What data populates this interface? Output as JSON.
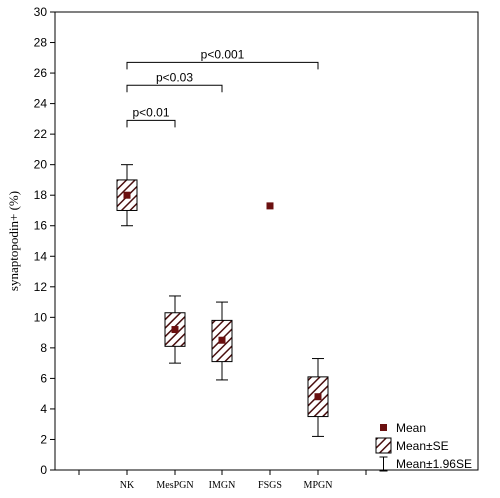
{
  "chart_data": {
    "type": "box",
    "ylabel": "synaptopodin+ (%)",
    "ylim": [
      0,
      30
    ],
    "yticks": [
      0,
      2,
      4,
      6,
      8,
      10,
      12,
      14,
      16,
      18,
      20,
      22,
      24,
      26,
      28,
      30
    ],
    "grid": false,
    "categories": [
      "NK",
      "MesPGN",
      "IMGN",
      "FSGS",
      "MPGN"
    ],
    "series": [
      {
        "category": "NK",
        "mean": 18.0,
        "se_low": 17.0,
        "se_high": 19.0,
        "ci_low": 16.0,
        "ci_high": 20.0
      },
      {
        "category": "MesPGN",
        "mean": 9.2,
        "se_low": 8.1,
        "se_high": 10.3,
        "ci_low": 7.0,
        "ci_high": 11.4
      },
      {
        "category": "IMGN",
        "mean": 8.5,
        "se_low": 7.1,
        "se_high": 9.8,
        "ci_low": 5.9,
        "ci_high": 11.0
      },
      {
        "category": "FSGS",
        "mean": 17.3
      },
      {
        "category": "MPGN",
        "mean": 4.8,
        "se_low": 3.5,
        "se_high": 6.1,
        "ci_low": 2.2,
        "ci_high": 7.3
      }
    ],
    "annotations": [
      {
        "from": "NK",
        "to": "MesPGN",
        "y": 22.9,
        "label": "p<0.01"
      },
      {
        "from": "NK",
        "to": "IMGN",
        "y": 25.2,
        "label": "p<0.03"
      },
      {
        "from": "NK",
        "to": "MPGN",
        "y": 26.7,
        "label": "p<0.001"
      }
    ],
    "legend": {
      "position": "bottom-right",
      "items": [
        "Mean",
        "Mean±SE",
        "Mean±1.96SE"
      ]
    },
    "colors": {
      "mean_marker": "#6b1010",
      "box_hatch": "#4a0f0f",
      "axis": "#000000"
    }
  }
}
